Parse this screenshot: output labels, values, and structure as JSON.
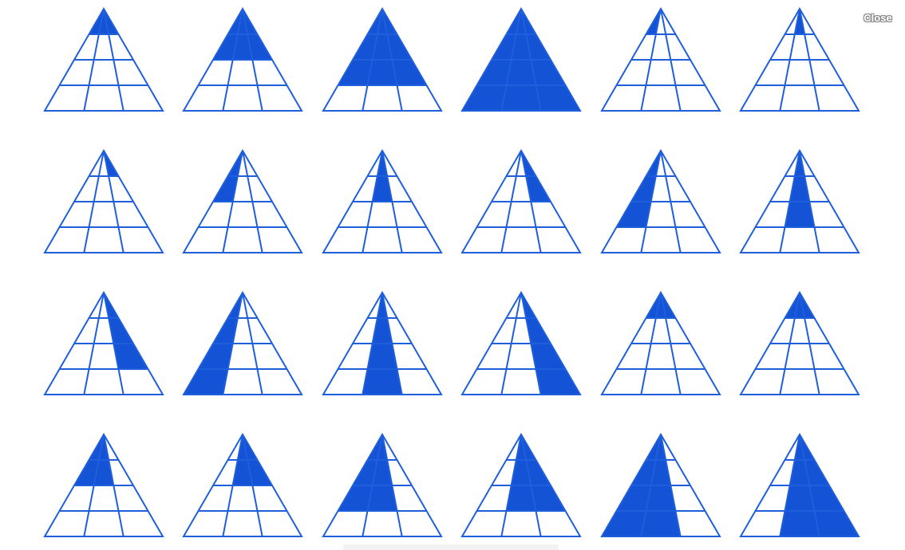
{
  "close_label": "Close",
  "colors": {
    "accent": "#1452d6",
    "outline": "#1f5fdc",
    "background": "#ffffff"
  },
  "puzzle": {
    "rows": 4,
    "cols": 6,
    "triangles": [
      {
        "name": "r1c1",
        "filled": "top-row-1"
      },
      {
        "name": "r1c2",
        "filled": "top-rows-1-2"
      },
      {
        "name": "r1c3",
        "filled": "top-rows-1-3"
      },
      {
        "name": "r1c4",
        "filled": "all"
      },
      {
        "name": "r1c5",
        "filled": "row-1-left-sliver"
      },
      {
        "name": "r1c6",
        "filled": "row-1-center-sliver"
      },
      {
        "name": "r2c1",
        "filled": "row-1-right-sliver"
      },
      {
        "name": "r2c2",
        "filled": "rows-1-2-left-sliver"
      },
      {
        "name": "r2c3",
        "filled": "rows-1-2-center-sliver"
      },
      {
        "name": "r2c4",
        "filled": "rows-1-2-right-sliver"
      },
      {
        "name": "r2c5",
        "filled": "rows-1-3-left-sliver"
      },
      {
        "name": "r2c6",
        "filled": "rows-1-3-center-sliver"
      },
      {
        "name": "r3c1",
        "filled": "rows-1-3-right-sliver"
      },
      {
        "name": "r3c2",
        "filled": "rows-1-4-left-sliver"
      },
      {
        "name": "r3c3",
        "filled": "rows-1-4-center-sliver"
      },
      {
        "name": "r3c4",
        "filled": "rows-1-4-right-sliver"
      },
      {
        "name": "r3c5",
        "filled": "top-row-1"
      },
      {
        "name": "r3c6",
        "filled": "top-row-1"
      },
      {
        "name": "r4c1",
        "filled": "rows-1-2-left-half"
      },
      {
        "name": "r4c2",
        "filled": "rows-1-2-right-half"
      },
      {
        "name": "r4c3",
        "filled": "rows-1-3-left-half"
      },
      {
        "name": "r4c4",
        "filled": "rows-1-3-right-half"
      },
      {
        "name": "r4c5",
        "filled": "rows-1-4-left-half"
      },
      {
        "name": "r4c6",
        "filled": "rows-1-4-right-half"
      }
    ]
  }
}
